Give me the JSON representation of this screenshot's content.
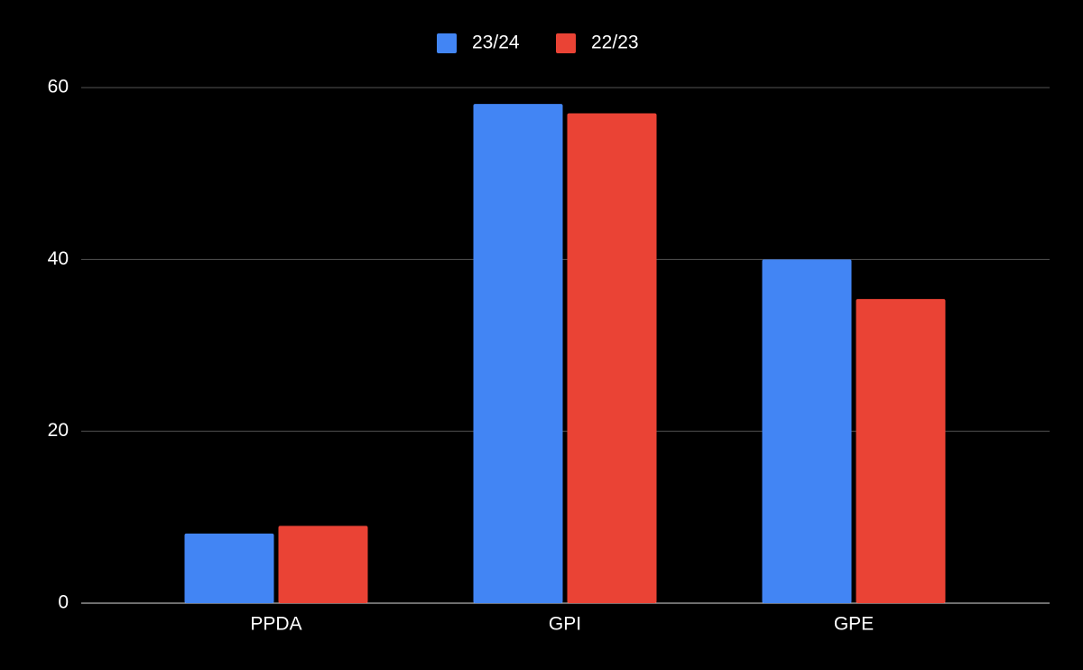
{
  "chart_data": {
    "type": "bar",
    "categories": [
      "PPDA",
      "GPI",
      "GPE"
    ],
    "series": [
      {
        "name": "23/24",
        "color": "#4285f4",
        "values": [
          8.1,
          58.1,
          40.0
        ]
      },
      {
        "name": "22/23",
        "color": "#ea4335",
        "values": [
          9.0,
          57.0,
          35.4
        ]
      }
    ],
    "ylim": [
      0,
      60
    ],
    "yticks": [
      0,
      20,
      40,
      60
    ],
    "grid": true,
    "legend": "top"
  }
}
